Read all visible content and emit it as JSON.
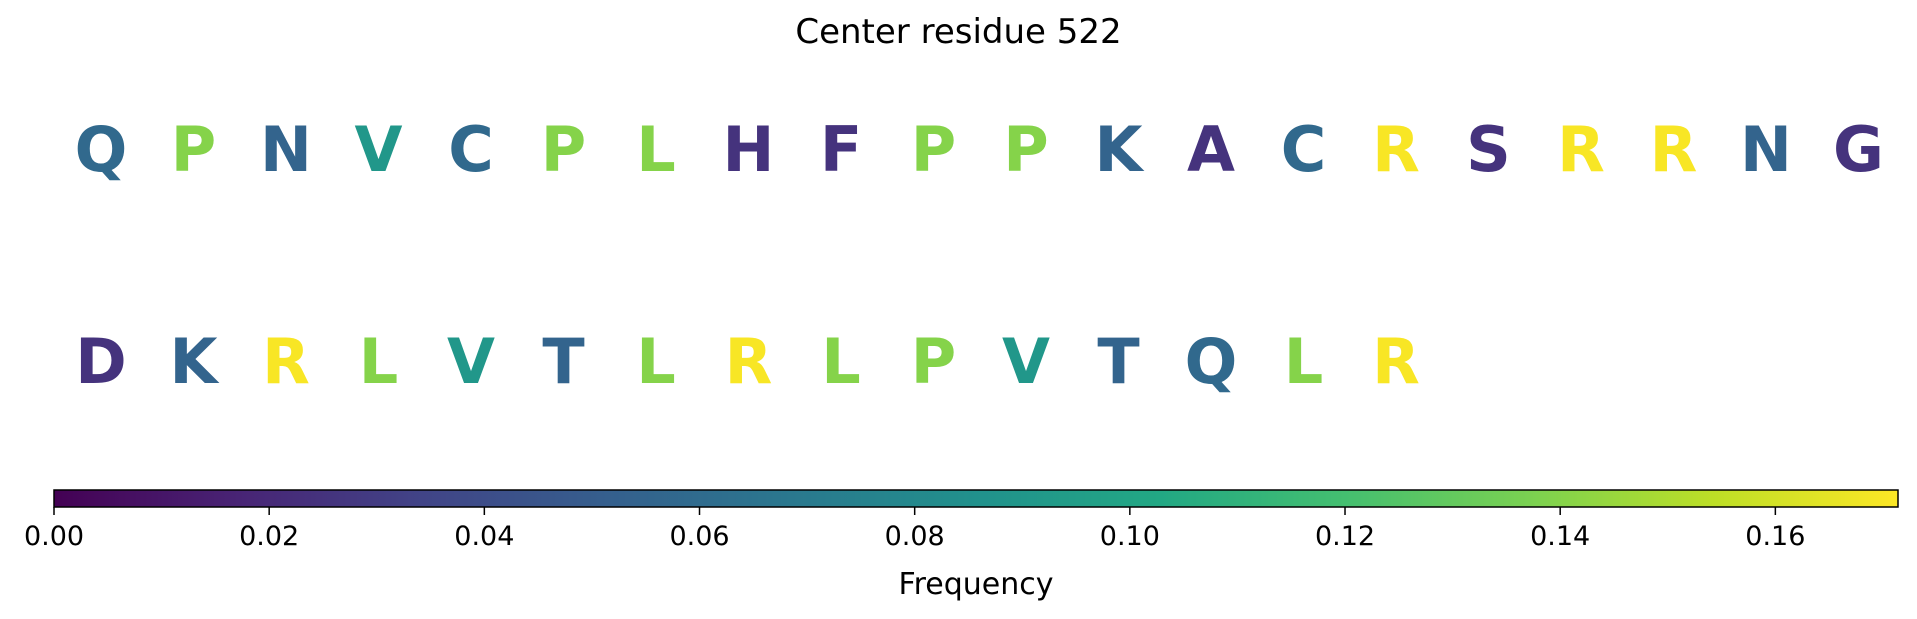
{
  "chart_data": {
    "type": "sequence-logo",
    "title": "Center residue 522",
    "residues": [
      {
        "letter": "Q",
        "frequency": 0.058
      },
      {
        "letter": "P",
        "frequency": 0.14
      },
      {
        "letter": "N",
        "frequency": 0.055
      },
      {
        "letter": "V",
        "frequency": 0.09
      },
      {
        "letter": "C",
        "frequency": 0.058
      },
      {
        "letter": "P",
        "frequency": 0.14
      },
      {
        "letter": "L",
        "frequency": 0.14
      },
      {
        "letter": "H",
        "frequency": 0.025
      },
      {
        "letter": "F",
        "frequency": 0.025
      },
      {
        "letter": "P",
        "frequency": 0.14
      },
      {
        "letter": "P",
        "frequency": 0.14
      },
      {
        "letter": "K",
        "frequency": 0.055
      },
      {
        "letter": "A",
        "frequency": 0.025
      },
      {
        "letter": "C",
        "frequency": 0.058
      },
      {
        "letter": "R",
        "frequency": 0.17
      },
      {
        "letter": "S",
        "frequency": 0.025
      },
      {
        "letter": "R",
        "frequency": 0.17
      },
      {
        "letter": "R",
        "frequency": 0.17
      },
      {
        "letter": "N",
        "frequency": 0.055
      },
      {
        "letter": "G",
        "frequency": 0.025
      },
      {
        "letter": "D",
        "frequency": 0.025
      },
      {
        "letter": "K",
        "frequency": 0.055
      },
      {
        "letter": "R",
        "frequency": 0.17
      },
      {
        "letter": "L",
        "frequency": 0.14
      },
      {
        "letter": "V",
        "frequency": 0.09
      },
      {
        "letter": "T",
        "frequency": 0.055
      },
      {
        "letter": "L",
        "frequency": 0.14
      },
      {
        "letter": "R",
        "frequency": 0.17
      },
      {
        "letter": "L",
        "frequency": 0.14
      },
      {
        "letter": "P",
        "frequency": 0.14
      },
      {
        "letter": "V",
        "frequency": 0.09
      },
      {
        "letter": "T",
        "frequency": 0.055
      },
      {
        "letter": "Q",
        "frequency": 0.058
      },
      {
        "letter": "L",
        "frequency": 0.14
      },
      {
        "letter": "R",
        "frequency": 0.17
      }
    ],
    "colorbar": {
      "label": "Frequency",
      "colormap": "viridis",
      "range": [
        0,
        0.1714
      ],
      "ticks": [
        0.0,
        0.02,
        0.04,
        0.06,
        0.08,
        0.1,
        0.12,
        0.14,
        0.16
      ],
      "tick_labels": [
        "0.00",
        "0.02",
        "0.04",
        "0.06",
        "0.08",
        "0.10",
        "0.12",
        "0.14",
        "0.16"
      ]
    }
  }
}
